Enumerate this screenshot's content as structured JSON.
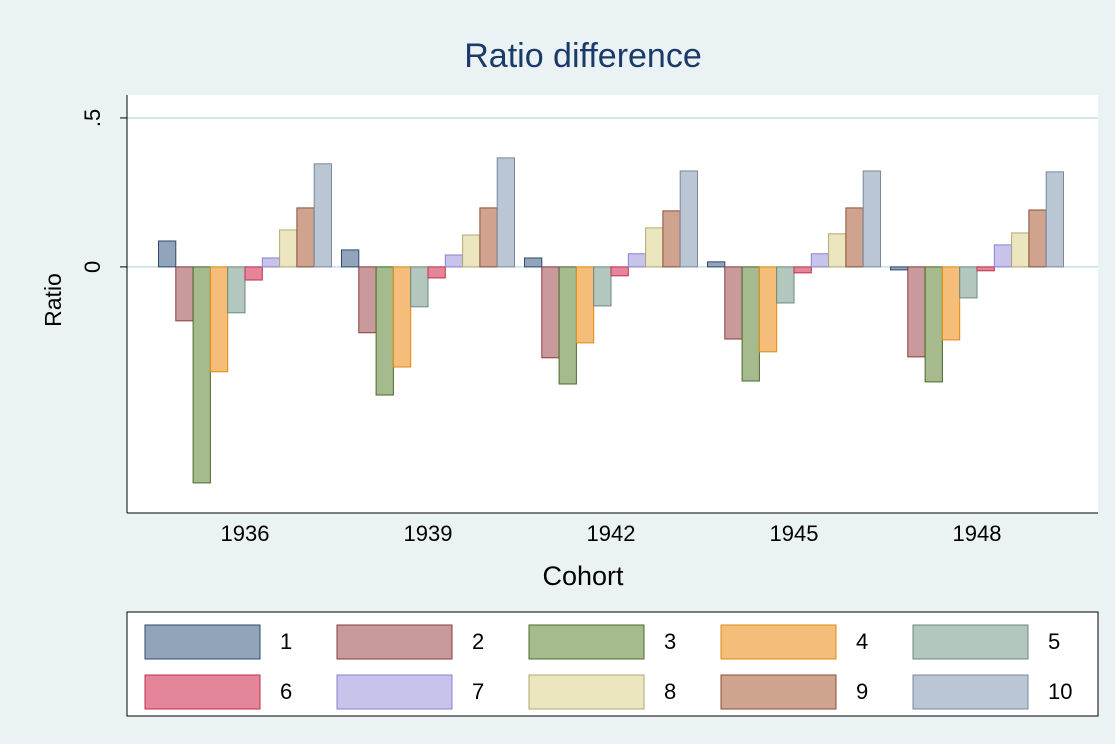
{
  "chart_data": {
    "type": "bar",
    "title": "Ratio difference",
    "x_label": "Cohort",
    "y_label": "Ratio",
    "categories": [
      "1936",
      "1939",
      "1942",
      "1945",
      "1948"
    ],
    "series": [
      {
        "name": "1",
        "color": "#91a4b9",
        "edge": "#2c4a70",
        "values": [
          0.087,
          0.057,
          0.03,
          0.017,
          -0.01
        ]
      },
      {
        "name": "2",
        "color": "#c99a9c",
        "edge": "#8b3a3e",
        "values": [
          -0.181,
          -0.221,
          -0.305,
          -0.242,
          -0.302
        ]
      },
      {
        "name": "3",
        "color": "#a5bb8e",
        "edge": "#4a6a2a",
        "values": [
          -0.725,
          -0.43,
          -0.393,
          -0.383,
          -0.386
        ]
      },
      {
        "name": "4",
        "color": "#f5bd7a",
        "edge": "#e08a10",
        "values": [
          -0.352,
          -0.336,
          -0.255,
          -0.285,
          -0.245
        ]
      },
      {
        "name": "5",
        "color": "#b4c7bf",
        "edge": "#6a8a7e",
        "values": [
          -0.154,
          -0.134,
          -0.131,
          -0.121,
          -0.104
        ]
      },
      {
        "name": "6",
        "color": "#e4859a",
        "edge": "#c0304a",
        "values": [
          -0.044,
          -0.037,
          -0.03,
          -0.02,
          -0.013
        ]
      },
      {
        "name": "7",
        "color": "#c8c3eb",
        "edge": "#8a80d0",
        "values": [
          0.03,
          0.04,
          0.044,
          0.044,
          0.074
        ]
      },
      {
        "name": "8",
        "color": "#ebe6c0",
        "edge": "#b0a870",
        "values": [
          0.124,
          0.107,
          0.131,
          0.111,
          0.114
        ]
      },
      {
        "name": "9",
        "color": "#cfa38e",
        "edge": "#8a4f38",
        "values": [
          0.198,
          0.198,
          0.188,
          0.198,
          0.191
        ]
      },
      {
        "name": "10",
        "color": "#bac6d4",
        "edge": "#7888a0",
        "values": [
          0.346,
          0.366,
          0.322,
          0.322,
          0.319
        ]
      }
    ],
    "ylim": [
      -0.826,
      0.577
    ],
    "yticks": [
      0,
      {
        "value": 0.5,
        "label": ".5"
      }
    ],
    "grid": true,
    "grid_color": "#a8d0da"
  }
}
